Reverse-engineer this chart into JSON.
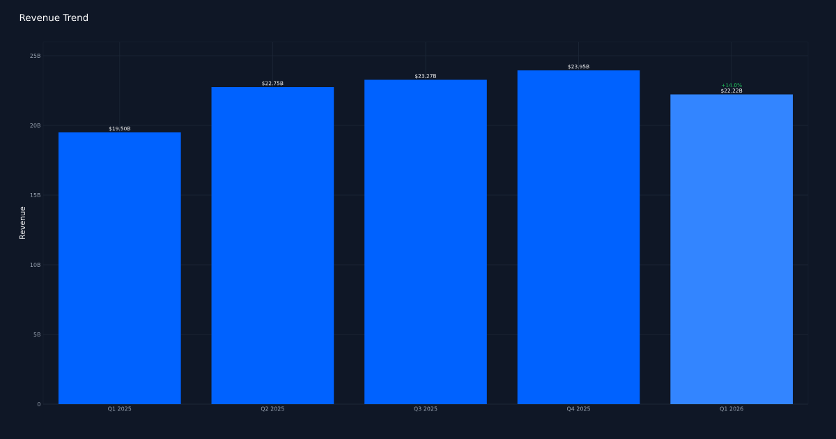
{
  "chart_data": {
    "type": "bar",
    "title": "Revenue Trend",
    "ylabel": "Revenue",
    "categories": [
      "Q1 2025",
      "Q2 2025",
      "Q3 2025",
      "Q4 2025",
      "Q1 2026"
    ],
    "values": [
      19.5,
      22.75,
      23.27,
      23.95,
      22.22
    ],
    "colors": [
      "#0062ff",
      "#0062ff",
      "#0062ff",
      "#0062ff",
      "#3385ff"
    ],
    "value_labels": [
      "$19.50B",
      "$22.75B",
      "$23.27B",
      "$23.95B",
      "$22.22B"
    ],
    "annotations": [
      {
        "text": "+14.0%",
        "x": "Q1 2026",
        "y": 22.22
      }
    ],
    "ylim": [
      0,
      26
    ],
    "yticks": [
      0,
      {
        "value": 5,
        "label": "5B"
      },
      {
        "value": 10,
        "label": "10B"
      },
      {
        "value": 15,
        "label": "15B"
      },
      {
        "value": 20,
        "label": "20B"
      },
      {
        "value": 25,
        "label": "25B"
      }
    ],
    "grid": true
  }
}
